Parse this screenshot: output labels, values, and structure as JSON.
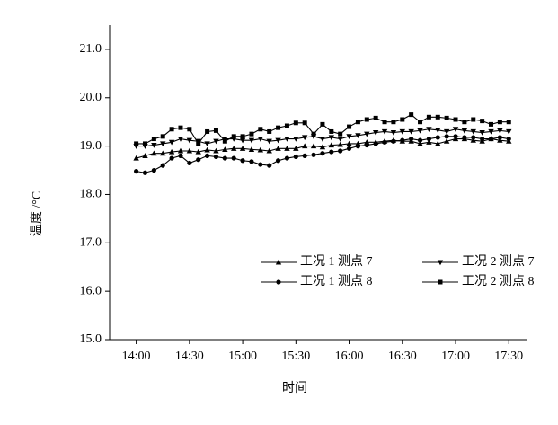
{
  "chart_data": {
    "type": "line",
    "x_label": "时间",
    "y_label": "温度 /°C",
    "x": [
      "14:00",
      "14:05",
      "14:10",
      "14:15",
      "14:20",
      "14:25",
      "14:30",
      "14:35",
      "14:40",
      "14:45",
      "14:50",
      "14:55",
      "15:00",
      "15:05",
      "15:10",
      "15:15",
      "15:20",
      "15:25",
      "15:30",
      "15:35",
      "15:40",
      "15:45",
      "15:50",
      "15:55",
      "16:00",
      "16:05",
      "16:10",
      "16:15",
      "16:20",
      "16:25",
      "16:30",
      "16:35",
      "16:40",
      "16:45",
      "16:50",
      "16:55",
      "17:00",
      "17:05",
      "17:10",
      "17:15",
      "17:20",
      "17:25",
      "17:30"
    ],
    "xlim": [
      "13:45",
      "17:40"
    ],
    "xticks": [
      "14:00",
      "14:30",
      "15:00",
      "15:30",
      "16:00",
      "16:30",
      "17:00",
      "17:30"
    ],
    "ylim": [
      15,
      21.5
    ],
    "yticks": [
      {
        "value": 15,
        "label": "15.0"
      },
      {
        "value": 16,
        "label": "16.0"
      },
      {
        "value": 17,
        "label": "17.0"
      },
      {
        "value": 18,
        "label": "18.0"
      },
      {
        "value": 19,
        "label": "19.0"
      },
      {
        "value": 20,
        "label": "20.0"
      },
      {
        "value": 21,
        "label": "21.0"
      }
    ],
    "legend": "lower-right",
    "series": [
      {
        "name": "工况 1 测点 7",
        "color": "#000000",
        "marker": "triangle-up",
        "values": [
          18.75,
          18.8,
          18.85,
          18.85,
          18.88,
          18.9,
          18.9,
          18.88,
          18.92,
          18.9,
          18.93,
          18.95,
          18.95,
          18.93,
          18.92,
          18.9,
          18.95,
          18.95,
          18.95,
          19.0,
          19.0,
          18.98,
          19.02,
          19.03,
          19.05,
          19.05,
          19.08,
          19.08,
          19.1,
          19.12,
          19.1,
          19.1,
          19.05,
          19.08,
          19.05,
          19.1,
          19.15,
          19.15,
          19.12,
          19.1,
          19.15,
          19.12,
          19.1
        ]
      },
      {
        "name": "工况 2 测点 7",
        "color": "#000000",
        "marker": "triangle-down",
        "values": [
          19.0,
          19.0,
          19.02,
          19.05,
          19.08,
          19.15,
          19.12,
          19.1,
          19.05,
          19.1,
          19.15,
          19.15,
          19.12,
          19.12,
          19.15,
          19.1,
          19.12,
          19.15,
          19.15,
          19.18,
          19.2,
          19.15,
          19.18,
          19.15,
          19.2,
          19.22,
          19.25,
          19.28,
          19.3,
          19.28,
          19.3,
          19.3,
          19.32,
          19.35,
          19.33,
          19.3,
          19.35,
          19.32,
          19.3,
          19.28,
          19.3,
          19.32,
          19.3
        ]
      },
      {
        "name": "工况 1 测点 8",
        "color": "#000000",
        "marker": "circle",
        "values": [
          18.48,
          18.45,
          18.5,
          18.6,
          18.75,
          18.8,
          18.65,
          18.72,
          18.8,
          18.78,
          18.75,
          18.75,
          18.7,
          18.68,
          18.62,
          18.6,
          18.7,
          18.75,
          18.78,
          18.8,
          18.82,
          18.85,
          18.88,
          18.9,
          18.95,
          19.0,
          19.02,
          19.05,
          19.08,
          19.1,
          19.12,
          19.15,
          19.12,
          19.15,
          19.18,
          19.2,
          19.2,
          19.18,
          19.18,
          19.15,
          19.15,
          19.18,
          19.15
        ]
      },
      {
        "name": "工况 2 测点 8",
        "color": "#000000",
        "marker": "square",
        "values": [
          19.05,
          19.05,
          19.15,
          19.2,
          19.35,
          19.38,
          19.35,
          19.05,
          19.3,
          19.32,
          19.1,
          19.2,
          19.2,
          19.25,
          19.35,
          19.3,
          19.38,
          19.42,
          19.48,
          19.48,
          19.25,
          19.45,
          19.3,
          19.25,
          19.4,
          19.5,
          19.55,
          19.58,
          19.5,
          19.5,
          19.55,
          19.65,
          19.5,
          19.6,
          19.6,
          19.58,
          19.55,
          19.5,
          19.55,
          19.52,
          19.45,
          19.5,
          19.5
        ]
      }
    ]
  }
}
